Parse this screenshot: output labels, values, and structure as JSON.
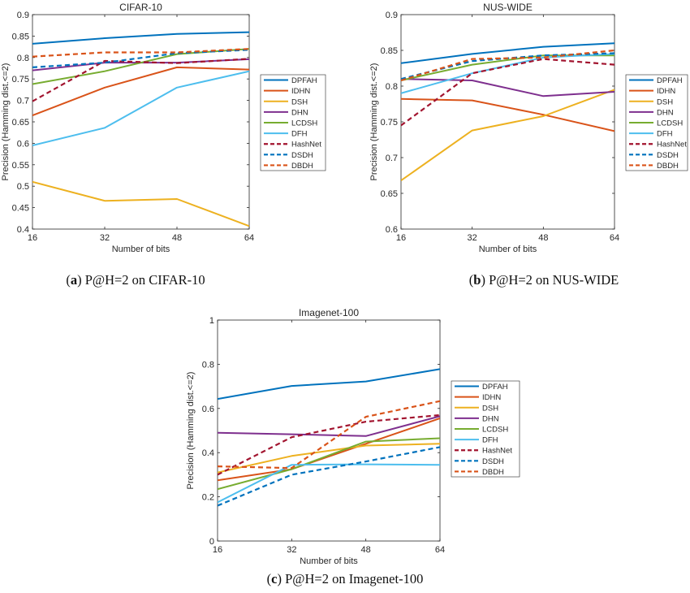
{
  "styles": {
    "DPFAH": {
      "color": "#0072BD",
      "dash": false,
      "width": 2
    },
    "IDHN": {
      "color": "#D95319",
      "dash": false,
      "width": 2
    },
    "DSH": {
      "color": "#EDB120",
      "dash": false,
      "width": 2
    },
    "DHN": {
      "color": "#7E2F8E",
      "dash": false,
      "width": 2
    },
    "LCDSH": {
      "color": "#77AC30",
      "dash": false,
      "width": 2
    },
    "DFH": {
      "color": "#4DBEEE",
      "dash": false,
      "width": 2
    },
    "HashNet": {
      "color": "#A2142F",
      "dash": true,
      "width": 2.2
    },
    "DSDH": {
      "color": "#0072BD",
      "dash": true,
      "width": 2.2
    },
    "DBDH": {
      "color": "#D95319",
      "dash": true,
      "width": 2.2
    }
  },
  "chart_data": [
    {
      "type": "line",
      "title": "CIFAR-10",
      "xlabel": "Number of bits",
      "ylabel": "Precision (Hamming dist.<=2)",
      "caption_letter": "a",
      "caption_text": " P@H=2 on CIFAR-10",
      "x": [
        16,
        32,
        48,
        64
      ],
      "xticks": [
        "16",
        "32",
        "48",
        "64"
      ],
      "ylim": [
        0.4,
        0.9
      ],
      "yticks": [
        "0.4",
        "0.45",
        "0.5",
        "0.55",
        "0.6",
        "0.65",
        "0.7",
        "0.75",
        "0.8",
        "0.85",
        "0.9"
      ],
      "grid": false,
      "legend_position": "right-outside",
      "series": [
        {
          "name": "DPFAH",
          "values": [
            0.832,
            0.845,
            0.855,
            0.859
          ]
        },
        {
          "name": "IDHN",
          "values": [
            0.665,
            0.73,
            0.777,
            0.772
          ]
        },
        {
          "name": "DSH",
          "values": [
            0.51,
            0.466,
            0.47,
            0.407
          ]
        },
        {
          "name": "DHN",
          "values": [
            0.77,
            0.788,
            0.788,
            0.796
          ]
        },
        {
          "name": "LCDSH",
          "values": [
            0.738,
            0.768,
            0.808,
            0.82
          ]
        },
        {
          "name": "DFH",
          "values": [
            0.595,
            0.636,
            0.73,
            0.768
          ]
        },
        {
          "name": "HashNet",
          "values": [
            0.698,
            0.792,
            0.787,
            0.797
          ]
        },
        {
          "name": "DSDH",
          "values": [
            0.777,
            0.788,
            0.81,
            0.818
          ]
        },
        {
          "name": "DBDH",
          "values": [
            0.802,
            0.812,
            0.812,
            0.82
          ]
        }
      ]
    },
    {
      "type": "line",
      "title": "NUS-WIDE",
      "xlabel": "Number of bits",
      "ylabel": "Precision (Hamming dist.<=2)",
      "caption_letter": "b",
      "caption_text": " P@H=2 on NUS-WIDE",
      "x": [
        16,
        32,
        48,
        64
      ],
      "xticks": [
        "16",
        "32",
        "48",
        "64"
      ],
      "ylim": [
        0.6,
        0.9
      ],
      "yticks": [
        "0.6",
        "0.65",
        "0.7",
        "0.75",
        "0.8",
        "0.85",
        "0.9"
      ],
      "grid": false,
      "legend_position": "right-outside",
      "series": [
        {
          "name": "DPFAH",
          "values": [
            0.832,
            0.845,
            0.855,
            0.86
          ]
        },
        {
          "name": "IDHN",
          "values": [
            0.782,
            0.78,
            0.76,
            0.737
          ]
        },
        {
          "name": "DSH",
          "values": [
            0.668,
            0.738,
            0.758,
            0.795
          ]
        },
        {
          "name": "DHN",
          "values": [
            0.81,
            0.808,
            0.786,
            0.792
          ]
        },
        {
          "name": "LCDSH",
          "values": [
            0.808,
            0.83,
            0.843,
            0.843
          ]
        },
        {
          "name": "DFH",
          "values": [
            0.79,
            0.818,
            0.84,
            0.845
          ]
        },
        {
          "name": "HashNet",
          "values": [
            0.745,
            0.818,
            0.838,
            0.83
          ]
        },
        {
          "name": "DSDH",
          "values": [
            0.81,
            0.835,
            0.843,
            0.846
          ]
        },
        {
          "name": "DBDH",
          "values": [
            0.808,
            0.838,
            0.84,
            0.85
          ]
        }
      ]
    },
    {
      "type": "line",
      "title": "Imagenet-100",
      "xlabel": "Number of bits",
      "ylabel": "Precision (Hamming dist.<=2)",
      "caption_letter": "c",
      "caption_text": " P@H=2 on Imagenet-100",
      "x": [
        16,
        32,
        48,
        64
      ],
      "xticks": [
        "16",
        "32",
        "48",
        "64"
      ],
      "ylim": [
        0,
        1
      ],
      "yticks": [
        "0",
        "0.2",
        "0.4",
        "0.6",
        "0.8",
        "1"
      ],
      "grid": false,
      "legend_position": "right-outside",
      "series": [
        {
          "name": "DPFAH",
          "values": [
            0.643,
            0.702,
            0.722,
            0.778
          ]
        },
        {
          "name": "IDHN",
          "values": [
            0.275,
            0.325,
            0.44,
            0.555
          ]
        },
        {
          "name": "DSH",
          "values": [
            0.31,
            0.385,
            0.432,
            0.44
          ]
        },
        {
          "name": "DHN",
          "values": [
            0.49,
            0.483,
            0.475,
            0.565
          ]
        },
        {
          "name": "LCDSH",
          "values": [
            0.235,
            0.325,
            0.45,
            0.465
          ]
        },
        {
          "name": "DFH",
          "values": [
            0.175,
            0.345,
            0.347,
            0.345
          ]
        },
        {
          "name": "HashNet",
          "values": [
            0.3,
            0.47,
            0.54,
            0.57
          ]
        },
        {
          "name": "DSDH",
          "values": [
            0.16,
            0.3,
            0.36,
            0.425
          ]
        },
        {
          "name": "DBDH",
          "values": [
            0.338,
            0.33,
            0.562,
            0.633
          ]
        }
      ]
    }
  ]
}
